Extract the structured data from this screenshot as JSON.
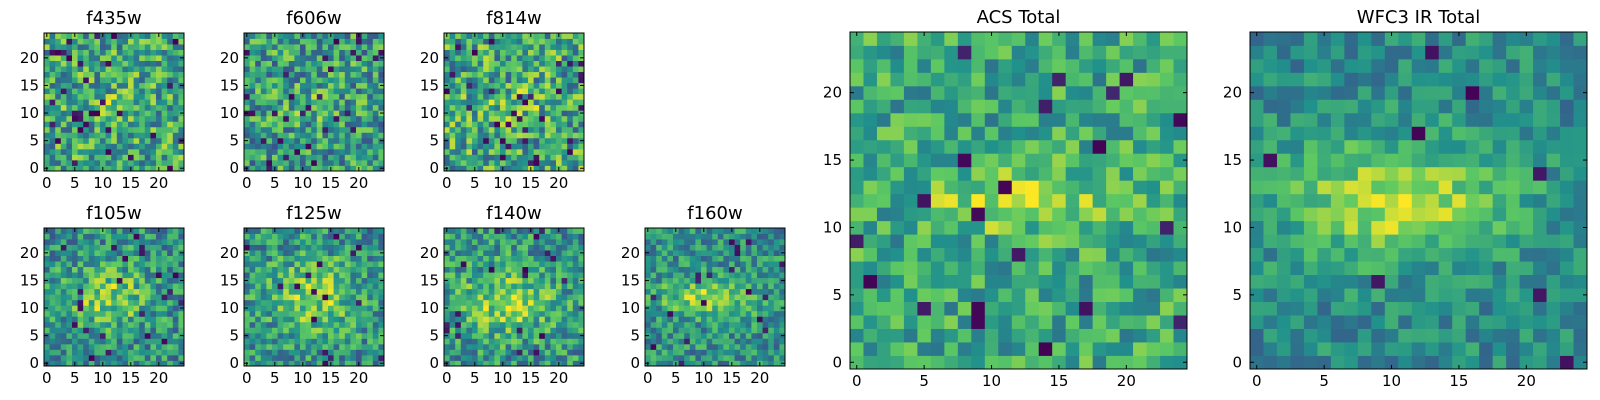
{
  "figure": {
    "colormap": "viridis",
    "colormap_stops": [
      "#440154",
      "#3b528b",
      "#21918c",
      "#5ec962",
      "#fde725"
    ]
  },
  "chart_data": [
    {
      "type": "heatmap",
      "title": "f435w",
      "grid_size": 25,
      "xlim": [
        0,
        24
      ],
      "ylim": [
        0,
        24
      ],
      "xticks": [
        "0",
        "5",
        "10",
        "15",
        "20"
      ],
      "yticks": [
        "0",
        "5",
        "10",
        "15",
        "20"
      ],
      "seed": 11,
      "blob": {
        "cx": 11.5,
        "cy": 11.5,
        "sx": 4.5,
        "sy": 1.4,
        "amp": 0.12
      },
      "noise": 0.3,
      "base": 0.6,
      "dark_fraction": 0.05
    },
    {
      "type": "heatmap",
      "title": "f606w",
      "grid_size": 25,
      "xlim": [
        0,
        24
      ],
      "ylim": [
        0,
        24
      ],
      "xticks": [
        "0",
        "5",
        "10",
        "15",
        "20"
      ],
      "yticks": [
        "0",
        "5",
        "10",
        "15",
        "20"
      ],
      "seed": 23,
      "blob": {
        "cx": 11.5,
        "cy": 11.5,
        "sx": 3.0,
        "sy": 1.8,
        "amp": 0.2
      },
      "noise": 0.3,
      "base": 0.55,
      "dark_fraction": 0.05
    },
    {
      "type": "heatmap",
      "title": "f814w",
      "grid_size": 25,
      "xlim": [
        0,
        24
      ],
      "ylim": [
        0,
        24
      ],
      "xticks": [
        "0",
        "5",
        "10",
        "15",
        "20"
      ],
      "yticks": [
        "0",
        "5",
        "10",
        "15",
        "20"
      ],
      "seed": 37,
      "blob": {
        "cx": 11.5,
        "cy": 11.5,
        "sx": 4.0,
        "sy": 2.0,
        "amp": 0.14
      },
      "noise": 0.32,
      "base": 0.6,
      "dark_fraction": 0.05
    },
    {
      "type": "heatmap",
      "title": "f105w",
      "grid_size": 25,
      "xlim": [
        0,
        24
      ],
      "ylim": [
        0,
        24
      ],
      "xticks": [
        "0",
        "5",
        "10",
        "15",
        "20"
      ],
      "yticks": [
        "0",
        "5",
        "10",
        "15",
        "20"
      ],
      "seed": 51,
      "blob": {
        "cx": 11.0,
        "cy": 12.0,
        "sx": 5.0,
        "sy": 4.0,
        "amp": 0.3
      },
      "noise": 0.25,
      "base": 0.5,
      "dark_fraction": 0.03
    },
    {
      "type": "heatmap",
      "title": "f125w",
      "grid_size": 25,
      "xlim": [
        0,
        24
      ],
      "ylim": [
        0,
        24
      ],
      "xticks": [
        "0",
        "5",
        "10",
        "15",
        "20"
      ],
      "yticks": [
        "0",
        "5",
        "10",
        "15",
        "20"
      ],
      "seed": 67,
      "blob": {
        "cx": 12.0,
        "cy": 12.0,
        "sx": 6.0,
        "sy": 5.0,
        "amp": 0.3
      },
      "noise": 0.25,
      "base": 0.5,
      "dark_fraction": 0.03
    },
    {
      "type": "heatmap",
      "title": "f140w",
      "grid_size": 25,
      "xlim": [
        0,
        24
      ],
      "ylim": [
        0,
        24
      ],
      "xticks": [
        "0",
        "5",
        "10",
        "15",
        "20"
      ],
      "yticks": [
        "0",
        "5",
        "10",
        "15",
        "20"
      ],
      "seed": 79,
      "blob": {
        "cx": 11.0,
        "cy": 11.0,
        "sx": 6.0,
        "sy": 4.0,
        "amp": 0.3
      },
      "noise": 0.25,
      "base": 0.52,
      "dark_fraction": 0.03
    },
    {
      "type": "heatmap",
      "title": "f160w",
      "grid_size": 25,
      "xlim": [
        0,
        24
      ],
      "ylim": [
        0,
        24
      ],
      "xticks": [
        "0",
        "5",
        "10",
        "15",
        "20"
      ],
      "yticks": [
        "0",
        "5",
        "10",
        "15",
        "20"
      ],
      "seed": 97,
      "blob": {
        "cx": 11.0,
        "cy": 12.0,
        "sx": 6.0,
        "sy": 2.5,
        "amp": 0.35
      },
      "noise": 0.22,
      "base": 0.5,
      "dark_fraction": 0.03
    },
    {
      "type": "heatmap",
      "title": "ACS Total",
      "grid_size": 25,
      "xlim": [
        0,
        24
      ],
      "ylim": [
        0,
        24
      ],
      "xticks": [
        "0",
        "5",
        "10",
        "15",
        "20"
      ],
      "yticks": [
        "0",
        "5",
        "10",
        "15",
        "20"
      ],
      "seed": 113,
      "blob": {
        "cx": 12.0,
        "cy": 12.0,
        "sx": 4.5,
        "sy": 1.6,
        "amp": 0.3
      },
      "noise": 0.22,
      "base": 0.6,
      "dark_fraction": 0.04
    },
    {
      "type": "heatmap",
      "title": "WFC3 IR Total",
      "grid_size": 25,
      "xlim": [
        0,
        24
      ],
      "ylim": [
        0,
        24
      ],
      "xticks": [
        "0",
        "5",
        "10",
        "15",
        "20"
      ],
      "yticks": [
        "0",
        "5",
        "10",
        "15",
        "20"
      ],
      "seed": 131,
      "blob": {
        "cx": 10.5,
        "cy": 12.0,
        "sx": 6.0,
        "sy": 3.0,
        "amp": 0.42
      },
      "noise": 0.16,
      "base": 0.48,
      "dark_fraction": 0.015
    }
  ]
}
